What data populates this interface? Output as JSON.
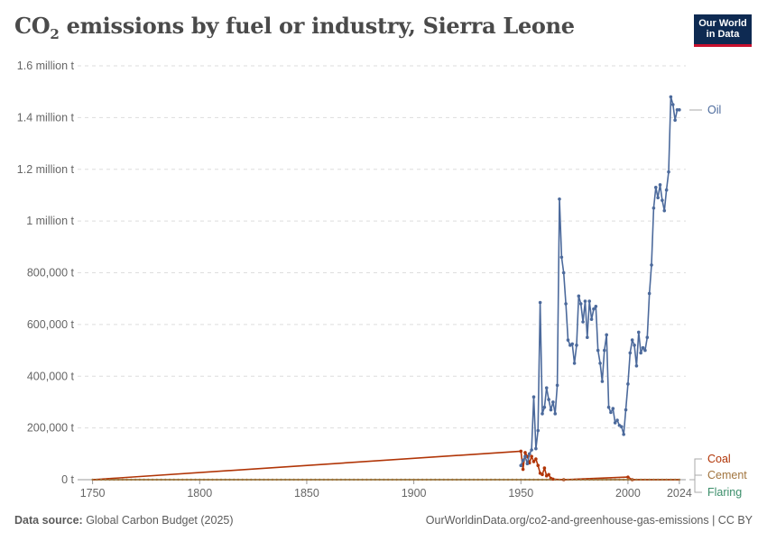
{
  "header": {
    "title_main": "CO",
    "title_sub": "2",
    "title_rest": " emissions by fuel or industry, Sierra Leone",
    "logo_line1": "Our World",
    "logo_line2": "in Data"
  },
  "footer": {
    "source_label": "Data source:",
    "source_text": " Global Carbon Budget (2025)",
    "url_text": "OurWorldinData.org/co2-and-greenhouse-gas-emissions | CC BY"
  },
  "chart_data": {
    "type": "line",
    "title": "CO₂ emissions by fuel or industry, Sierra Leone",
    "xlim": [
      1743,
      2027
    ],
    "ylim": [
      0,
      1600000
    ],
    "x_ticks": [
      1750,
      1800,
      1850,
      1900,
      1950,
      2000,
      2024
    ],
    "y_ticks": [
      {
        "value": 0,
        "label": "0 t"
      },
      {
        "value": 200000,
        "label": "200,000 t"
      },
      {
        "value": 400000,
        "label": "400,000 t"
      },
      {
        "value": 600000,
        "label": "600,000 t"
      },
      {
        "value": 800000,
        "label": "800,000 t"
      },
      {
        "value": 1000000,
        "label": "1 million t"
      },
      {
        "value": 1200000,
        "label": "1.2 million t"
      },
      {
        "value": 1400000,
        "label": "1.4 million t"
      },
      {
        "value": 1600000,
        "label": "1.6 million t"
      }
    ],
    "grid": true,
    "legend_position": "right",
    "colors": {
      "Oil": "#4c6a9c",
      "Coal": "#b13507",
      "Cement": "#a2753f",
      "Flaring": "#3b8e6a",
      "grid": "#dddddd",
      "axis_text": "#666666"
    },
    "series": [
      {
        "name": "Oil",
        "x": [
          1950,
          1951,
          1952,
          1953,
          1954,
          1955,
          1956,
          1957,
          1958,
          1959,
          1960,
          1961,
          1962,
          1963,
          1964,
          1965,
          1966,
          1967,
          1968,
          1969,
          1970,
          1971,
          1972,
          1973,
          1974,
          1975,
          1976,
          1977,
          1978,
          1979,
          1980,
          1981,
          1982,
          1983,
          1984,
          1985,
          1986,
          1987,
          1988,
          1989,
          1990,
          1991,
          1992,
          1993,
          1994,
          1995,
          1996,
          1997,
          1998,
          1999,
          2000,
          2001,
          2002,
          2003,
          2004,
          2005,
          2006,
          2007,
          2008,
          2009,
          2010,
          2011,
          2012,
          2013,
          2014,
          2015,
          2016,
          2017,
          2018,
          2019,
          2020,
          2021,
          2022,
          2023,
          2024
        ],
        "y": [
          55000,
          75000,
          90000,
          62000,
          100000,
          115000,
          320000,
          120000,
          190000,
          685000,
          255000,
          280000,
          355000,
          310000,
          270000,
          300000,
          255000,
          365000,
          1085000,
          860000,
          800000,
          680000,
          540000,
          520000,
          525000,
          450000,
          520000,
          710000,
          680000,
          610000,
          690000,
          550000,
          690000,
          620000,
          660000,
          670000,
          500000,
          450000,
          380000,
          500000,
          560000,
          280000,
          260000,
          275000,
          220000,
          230000,
          210000,
          205000,
          175000,
          270000,
          370000,
          490000,
          540000,
          520000,
          440000,
          570000,
          490000,
          510000,
          500000,
          550000,
          720000,
          830000,
          1050000,
          1130000,
          1090000,
          1140000,
          1080000,
          1040000,
          1120000,
          1190000,
          1480000,
          1450000,
          1390000,
          1430000,
          1430000
        ]
      },
      {
        "name": "Coal",
        "x": [
          1750,
          1950,
          1951,
          1952,
          1953,
          1954,
          1955,
          1956,
          1957,
          1958,
          1959,
          1960,
          1961,
          1962,
          1963,
          1964,
          1965,
          1970,
          2000,
          2002,
          2024
        ],
        "y": [
          0,
          110000,
          40000,
          105000,
          90000,
          65000,
          90000,
          70000,
          80000,
          55000,
          25000,
          20000,
          45000,
          15000,
          20000,
          5000,
          2000,
          0,
          10000,
          0,
          0
        ]
      },
      {
        "name": "Cement",
        "x": [
          1750,
          2024
        ],
        "y": [
          0,
          0
        ]
      },
      {
        "name": "Flaring",
        "x": [
          1750,
          2024
        ],
        "y": [
          0,
          0
        ]
      }
    ],
    "labels": [
      "Oil",
      "Coal",
      "Cement",
      "Flaring"
    ]
  }
}
